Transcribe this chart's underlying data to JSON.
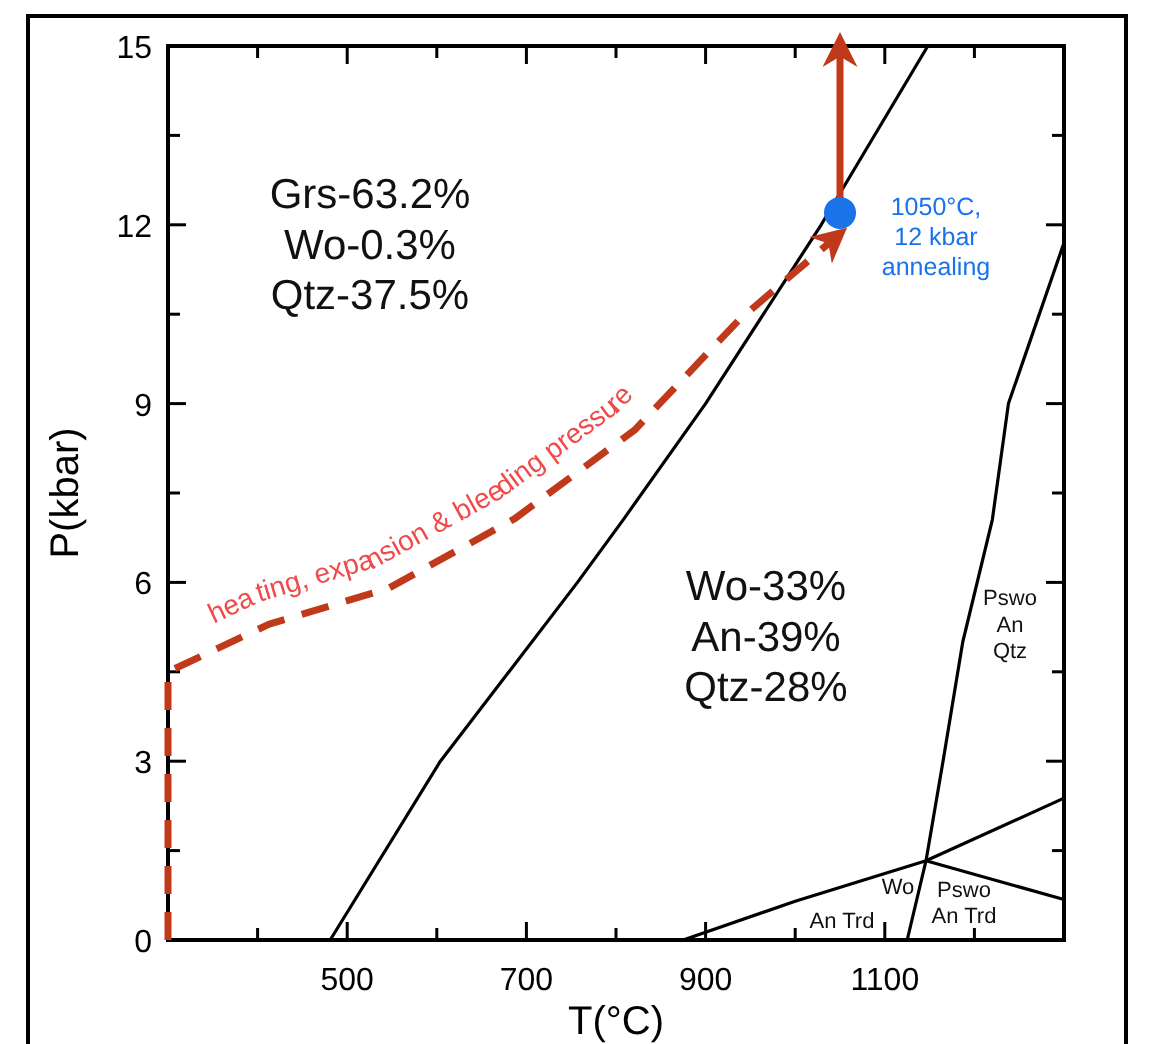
{
  "chart_data": {
    "type": "line",
    "xlabel": "T(°C)",
    "ylabel": "P(kbar)",
    "xlim": [
      300,
      1300
    ],
    "ylim": [
      0,
      15
    ],
    "xticks": [
      {
        "value": 400,
        "label": null
      },
      500,
      {
        "value": 600,
        "label": null
      },
      700,
      {
        "value": 800,
        "label": null
      },
      900,
      {
        "value": 1000,
        "label": null
      },
      1100,
      {
        "value": 1200,
        "label": null
      }
    ],
    "yticks": [
      0,
      {
        "value": 1.5,
        "label": null
      },
      3,
      {
        "value": 4.5,
        "label": null
      },
      6,
      {
        "value": 7.5,
        "label": null
      },
      9,
      {
        "value": 10.5,
        "label": null
      },
      12,
      {
        "value": 13.5,
        "label": null
      },
      15
    ],
    "series": [
      {
        "color": "#000000",
        "x": [
          481,
          604,
          757,
          808,
          900,
          1029,
          1148
        ],
        "values": [
          0,
          3,
          6,
          7.05,
          9,
          12,
          15
        ]
      },
      {
        "color": "#000000",
        "x": [
          1125,
          1146,
          1165,
          1187,
          1220,
          1238,
          1300
        ],
        "values": [
          0,
          1.33,
          3,
          5,
          7.05,
          9,
          11.7
        ]
      },
      {
        "color": "#000000",
        "x": [
          875,
          1000,
          1146,
          1300
        ],
        "values": [
          0,
          0.65,
          1.33,
          2.38
        ]
      },
      {
        "color": "#000000",
        "x": [
          1146,
          1300
        ],
        "values": [
          1.33,
          0.68
        ]
      },
      {
        "color": "#c0391b",
        "line_style": "dashed",
        "x": [
          300,
          300,
          413,
          546,
          687,
          821,
          937,
          1046
        ],
        "values": [
          0,
          4.5,
          5.3,
          5.9,
          7.07,
          8.56,
          10.4,
          11.8
        ]
      },
      {
        "color": "#c0391b",
        "line_style": "solid",
        "x": [
          1050,
          1050
        ],
        "values": [
          12.2,
          15
        ]
      },
      {
        "type": "scatter",
        "color": "#1a73e8",
        "x": [
          1050
        ],
        "values": [
          12.2
        ]
      }
    ],
    "annotations": [
      "Grs-63.2%\nWo-0.3%\nQtz-37.5%",
      "Wo-33%\nAn-39%\nQtz-28%",
      "Pswo\nAn\nQtz",
      "Wo",
      "An Trd",
      "Pswo\nAn Trd",
      "1050°C,\n12 kbar\nannealing",
      "heating, expansion & bleeding pressure"
    ],
    "grid": false
  }
}
